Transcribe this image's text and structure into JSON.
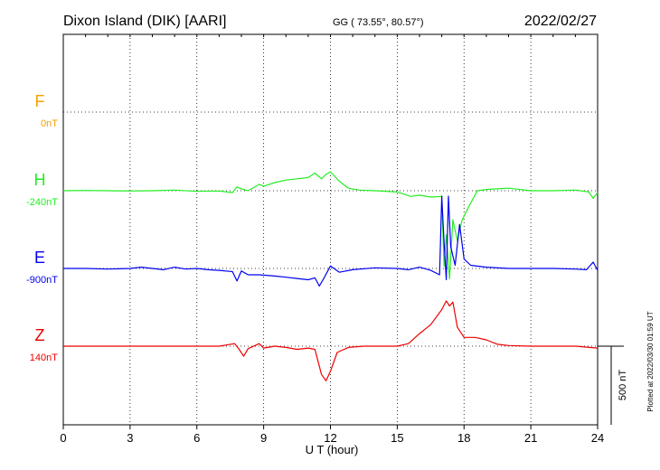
{
  "chart_data": {
    "type": "line",
    "title": "Dixon Island (DIK)  [AARI]",
    "coords": "GG ( 73.55°,  80.57°)",
    "date": "2022/02/27",
    "xlabel": "U T (hour)",
    "xlim": [
      0,
      24
    ],
    "xticks": [
      "0",
      "3",
      "6",
      "9",
      "12",
      "15",
      "18",
      "21",
      "24"
    ],
    "scale_bar_label": "500 nT",
    "plotted_label": "Plotted at 2022/03/30 01:59 UT",
    "grid": true,
    "units": "nT",
    "series": [
      {
        "name": "F",
        "baseline_label": "0nT",
        "color": "#f5a000",
        "x": [],
        "y": []
      },
      {
        "name": "H",
        "baseline_label": "-240nT",
        "color": "#22ee22",
        "x": [
          0,
          1,
          2,
          3,
          4,
          5,
          6,
          7,
          7.6,
          7.8,
          8.0,
          8.3,
          8.8,
          9.0,
          9.5,
          10.0,
          10.5,
          11.0,
          11.3,
          11.6,
          11.8,
          12.0,
          12.4,
          12.8,
          13.3,
          14.0,
          15.0,
          15.6,
          16.0,
          16.5,
          17.0,
          17.1,
          17.2,
          17.35,
          17.5,
          17.7,
          17.9,
          18.2,
          18.6,
          19.0,
          19.5,
          20.0,
          21.0,
          22.0,
          23.0,
          23.6,
          23.8,
          24.0
        ],
        "y": [
          0,
          2,
          0,
          -2,
          0,
          4,
          -4,
          -2,
          -12,
          24,
          12,
          0,
          40,
          28,
          52,
          68,
          76,
          84,
          112,
          76,
          104,
          120,
          60,
          16,
          4,
          0,
          -8,
          -36,
          -28,
          -40,
          -36,
          -480,
          -280,
          -560,
          -184,
          -320,
          -192,
          -104,
          0,
          8,
          12,
          16,
          0,
          0,
          4,
          -8,
          -48,
          -12
        ]
      },
      {
        "name": "E",
        "baseline_label": "-900nT",
        "color": "#0000ee",
        "x": [
          0,
          1,
          2,
          3,
          3.5,
          4,
          4.5,
          5,
          5.5,
          6,
          6.5,
          7,
          7.6,
          7.8,
          8.0,
          8.3,
          8.8,
          9.5,
          10.0,
          10.5,
          11.0,
          11.3,
          11.5,
          11.7,
          12.0,
          12.4,
          13.0,
          14.0,
          15.0,
          15.5,
          16.0,
          16.5,
          16.9,
          17.0,
          17.1,
          17.2,
          17.3,
          17.4,
          17.5,
          17.6,
          17.8,
          18.0,
          18.3,
          19.0,
          20.0,
          21.0,
          22.0,
          23.0,
          23.5,
          23.8,
          24.0
        ],
        "y": [
          0,
          0,
          -4,
          0,
          8,
          0,
          -8,
          8,
          -4,
          0,
          -8,
          -12,
          -20,
          -80,
          -16,
          -40,
          -40,
          -48,
          -56,
          -64,
          -72,
          -60,
          -112,
          -64,
          16,
          -24,
          -8,
          4,
          0,
          -8,
          8,
          -12,
          -40,
          460,
          172,
          -72,
          460,
          140,
          80,
          20,
          280,
          60,
          20,
          8,
          0,
          0,
          0,
          -4,
          -8,
          40,
          -12
        ]
      },
      {
        "name": "Z",
        "baseline_label": "140nT",
        "color": "#ee0000",
        "x": [
          0,
          2,
          4,
          6,
          7,
          7.7,
          7.9,
          8.1,
          8.3,
          8.8,
          9.0,
          9.5,
          10.0,
          10.5,
          11.0,
          11.3,
          11.6,
          11.8,
          12.0,
          12.3,
          12.8,
          13.5,
          14.0,
          15.0,
          15.5,
          16.0,
          16.5,
          17.0,
          17.2,
          17.35,
          17.5,
          17.7,
          18.0,
          18.5,
          19.0,
          19.5,
          20.0,
          21.0,
          22.0,
          23.0,
          24.0
        ],
        "y": [
          0,
          0,
          0,
          0,
          0,
          16,
          -20,
          -64,
          -16,
          16,
          -12,
          0,
          -8,
          -20,
          -12,
          -20,
          -180,
          -220,
          -160,
          -40,
          -8,
          0,
          0,
          0,
          16,
          80,
          136,
          232,
          288,
          256,
          280,
          120,
          56,
          56,
          40,
          12,
          4,
          0,
          0,
          0,
          -12
        ]
      }
    ]
  }
}
